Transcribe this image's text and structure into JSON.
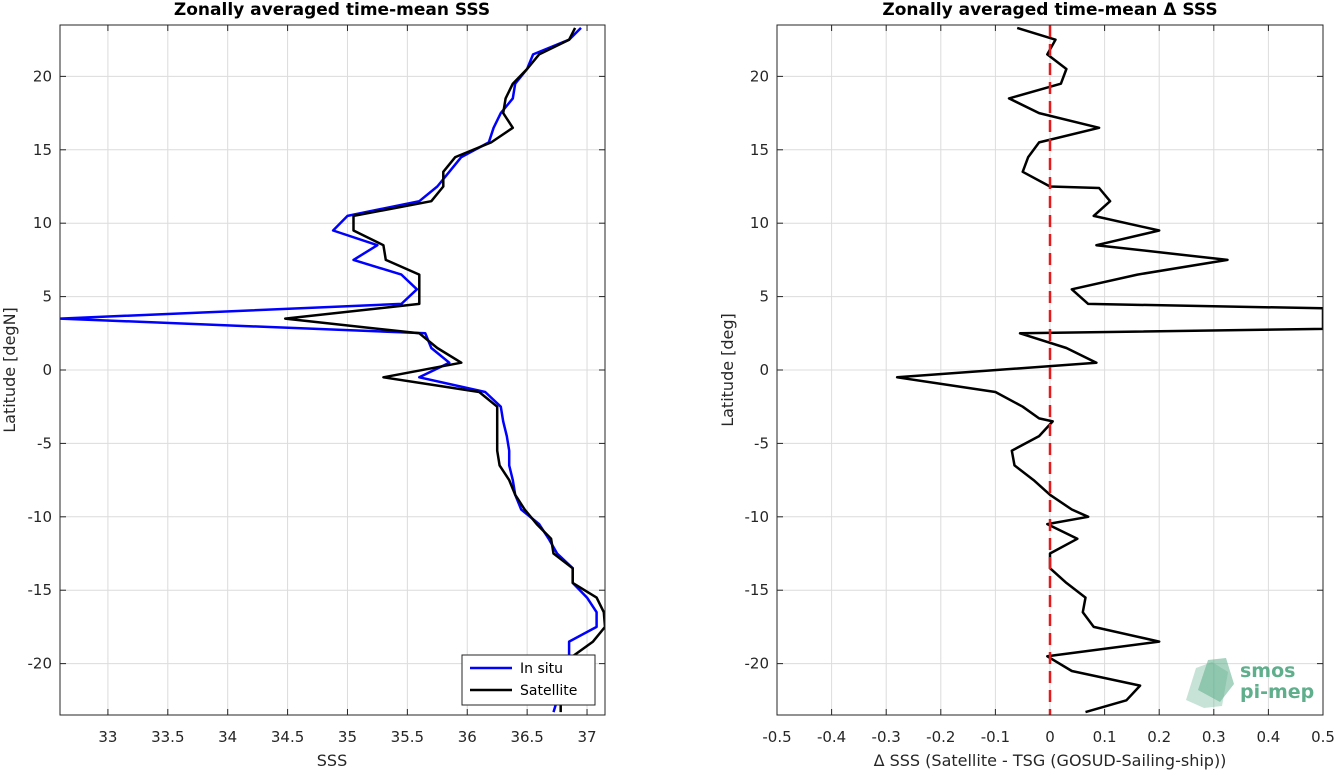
{
  "chart_data": [
    {
      "type": "line",
      "title": "Zonally averaged time-mean SSS",
      "xlabel": "SSS",
      "ylabel": "Latitude [degN]",
      "xlim": [
        32.6,
        37.15
      ],
      "ylim": [
        -23.5,
        23.5
      ],
      "xticks": [
        "33",
        "33.5",
        "34",
        "34.5",
        "35",
        "35.5",
        "36",
        "36.5",
        "37"
      ],
      "yticks": [
        "-20",
        "-15",
        "-10",
        "-5",
        "0",
        "5",
        "10",
        "15",
        "20"
      ],
      "grid": true,
      "legend": "bottom-right",
      "series": [
        {
          "name": "In situ",
          "color": "#0000ff",
          "points": [
            [
              36.95,
              23.3
            ],
            [
              36.85,
              22.5
            ],
            [
              36.55,
              21.5
            ],
            [
              36.5,
              20.5
            ],
            [
              36.4,
              19.5
            ],
            [
              36.38,
              18.5
            ],
            [
              36.28,
              17.5
            ],
            [
              36.22,
              16.5
            ],
            [
              36.18,
              15.5
            ],
            [
              35.95,
              14.5
            ],
            [
              35.85,
              13.5
            ],
            [
              35.75,
              12.5
            ],
            [
              35.6,
              11.5
            ],
            [
              35.0,
              10.5
            ],
            [
              34.88,
              9.5
            ],
            [
              35.25,
              8.5
            ],
            [
              35.05,
              7.5
            ],
            [
              35.45,
              6.5
            ],
            [
              35.58,
              5.5
            ],
            [
              35.45,
              4.5
            ],
            [
              32.6,
              3.5
            ],
            [
              35.65,
              2.5
            ],
            [
              35.7,
              1.5
            ],
            [
              35.85,
              0.5
            ],
            [
              35.6,
              -0.5
            ],
            [
              36.15,
              -1.5
            ],
            [
              36.28,
              -2.5
            ],
            [
              36.3,
              -3.5
            ],
            [
              36.33,
              -4.5
            ],
            [
              36.35,
              -5.5
            ],
            [
              36.35,
              -6.5
            ],
            [
              36.38,
              -7.5
            ],
            [
              36.4,
              -8.5
            ],
            [
              36.45,
              -9.5
            ],
            [
              36.6,
              -10.5
            ],
            [
              36.68,
              -11.5
            ],
            [
              36.75,
              -12.5
            ],
            [
              36.88,
              -13.5
            ],
            [
              36.88,
              -14.5
            ],
            [
              37.0,
              -15.5
            ],
            [
              37.08,
              -16.5
            ],
            [
              37.08,
              -17.5
            ],
            [
              36.85,
              -18.5
            ],
            [
              36.85,
              -19.5
            ],
            [
              36.85,
              -20.5
            ],
            [
              36.78,
              -21.5
            ],
            [
              36.75,
              -22.5
            ],
            [
              36.72,
              -23.3
            ]
          ]
        },
        {
          "name": "Satellite",
          "color": "#000000",
          "points": [
            [
              36.9,
              23.3
            ],
            [
              36.85,
              22.5
            ],
            [
              36.6,
              21.5
            ],
            [
              36.5,
              20.5
            ],
            [
              36.38,
              19.5
            ],
            [
              36.32,
              18.5
            ],
            [
              36.3,
              17.5
            ],
            [
              36.38,
              16.5
            ],
            [
              36.2,
              15.5
            ],
            [
              35.9,
              14.5
            ],
            [
              35.8,
              13.5
            ],
            [
              35.8,
              12.5
            ],
            [
              35.7,
              11.5
            ],
            [
              35.05,
              10.5
            ],
            [
              35.05,
              9.5
            ],
            [
              35.3,
              8.5
            ],
            [
              35.32,
              7.5
            ],
            [
              35.6,
              6.5
            ],
            [
              35.6,
              5.5
            ],
            [
              35.6,
              4.5
            ],
            [
              34.48,
              3.5
            ],
            [
              35.6,
              2.5
            ],
            [
              35.75,
              1.5
            ],
            [
              35.95,
              0.5
            ],
            [
              35.3,
              -0.5
            ],
            [
              36.1,
              -1.5
            ],
            [
              36.25,
              -2.5
            ],
            [
              36.25,
              -3.5
            ],
            [
              36.25,
              -4.5
            ],
            [
              36.25,
              -5.5
            ],
            [
              36.27,
              -6.5
            ],
            [
              36.35,
              -7.5
            ],
            [
              36.4,
              -8.5
            ],
            [
              36.48,
              -9.5
            ],
            [
              36.58,
              -10.5
            ],
            [
              36.7,
              -11.5
            ],
            [
              36.72,
              -12.5
            ],
            [
              36.88,
              -13.5
            ],
            [
              36.88,
              -14.5
            ],
            [
              37.08,
              -15.5
            ],
            [
              37.14,
              -16.5
            ],
            [
              37.15,
              -17.5
            ],
            [
              37.05,
              -18.5
            ],
            [
              36.88,
              -19.5
            ],
            [
              36.88,
              -20.5
            ],
            [
              36.82,
              -21.5
            ],
            [
              36.78,
              -22.5
            ],
            [
              36.78,
              -23.3
            ]
          ]
        }
      ]
    },
    {
      "type": "line",
      "title": "Zonally averaged time-mean Δ SSS",
      "xlabel": "Δ SSS (Satellite - TSG (GOSUD-Sailing-ship))",
      "ylabel": "Latitude [deg]",
      "xlim": [
        -0.5,
        0.5
      ],
      "ylim": [
        -23.5,
        23.5
      ],
      "xticks": [
        "-0.5",
        "-0.4",
        "-0.3",
        "-0.2",
        "-0.1",
        "0",
        "0.1",
        "0.2",
        "0.3",
        "0.4",
        "0.5"
      ],
      "yticks": [
        "-20",
        "-15",
        "-10",
        "-5",
        "0",
        "5",
        "10",
        "15",
        "20"
      ],
      "grid": true,
      "reference_line": {
        "x": 0,
        "color": "#e41a1c",
        "style": "dashed"
      },
      "series": [
        {
          "color": "#000000",
          "points": [
            [
              -0.06,
              23.3
            ],
            [
              0.01,
              22.5
            ],
            [
              -0.005,
              21.5
            ],
            [
              0.03,
              20.5
            ],
            [
              0.02,
              19.5
            ],
            [
              -0.075,
              18.5
            ],
            [
              -0.02,
              17.5
            ],
            [
              0.09,
              16.5
            ],
            [
              -0.02,
              15.5
            ],
            [
              -0.04,
              14.5
            ],
            [
              -0.05,
              13.5
            ],
            [
              0.0,
              12.5
            ],
            [
              0.09,
              12.4
            ],
            [
              0.11,
              11.5
            ],
            [
              0.08,
              10.5
            ],
            [
              0.2,
              9.5
            ],
            [
              0.085,
              8.5
            ],
            [
              0.325,
              7.5
            ],
            [
              0.16,
              6.5
            ],
            [
              0.04,
              5.5
            ],
            [
              0.07,
              4.5
            ],
            [
              0.5,
              4.2
            ],
            [
              0.5,
              2.8
            ],
            [
              -0.055,
              2.5
            ],
            [
              0.03,
              1.5
            ],
            [
              0.085,
              0.5
            ],
            [
              -0.28,
              -0.5
            ],
            [
              -0.1,
              -1.5
            ],
            [
              -0.05,
              -2.5
            ],
            [
              -0.02,
              -3.3
            ],
            [
              0.005,
              -3.5
            ],
            [
              -0.02,
              -4.5
            ],
            [
              -0.07,
              -5.5
            ],
            [
              -0.065,
              -6.5
            ],
            [
              -0.03,
              -7.5
            ],
            [
              0.0,
              -8.5
            ],
            [
              0.04,
              -9.5
            ],
            [
              0.07,
              -10.0
            ],
            [
              -0.005,
              -10.5
            ],
            [
              0.05,
              -11.5
            ],
            [
              0.0,
              -12.5
            ],
            [
              0.0,
              -13.5
            ],
            [
              0.03,
              -14.5
            ],
            [
              0.065,
              -15.5
            ],
            [
              0.06,
              -16.5
            ],
            [
              0.08,
              -17.5
            ],
            [
              0.2,
              -18.5
            ],
            [
              -0.005,
              -19.5
            ],
            [
              0.04,
              -20.5
            ],
            [
              0.165,
              -21.5
            ],
            [
              0.14,
              -22.5
            ],
            [
              0.065,
              -23.3
            ]
          ]
        }
      ]
    }
  ],
  "logo": {
    "line1": "smos",
    "line2": "pi-mep"
  }
}
